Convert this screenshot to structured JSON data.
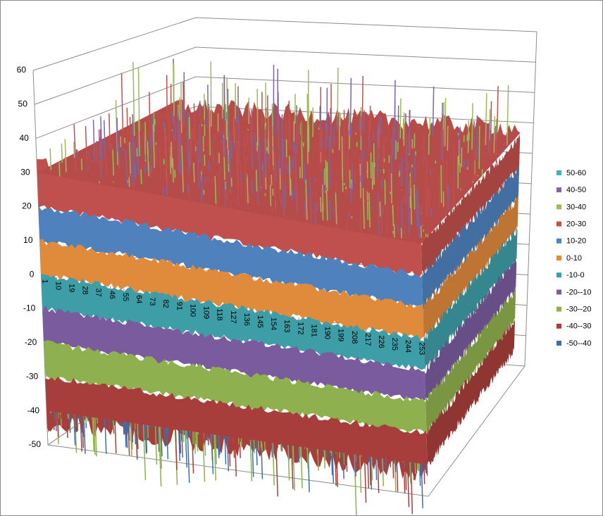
{
  "chart_data": {
    "type": "surface",
    "categories": [
      "1",
      "10",
      "19",
      "28",
      "37",
      "46",
      "55",
      "64",
      "73",
      "82",
      "91",
      "100",
      "109",
      "118",
      "127",
      "136",
      "145",
      "154",
      "163",
      "172",
      "181",
      "190",
      "199",
      "208",
      "217",
      "226",
      "235",
      "244",
      "253"
    ],
    "zlim": [
      -50,
      60
    ],
    "zticks": [
      -50,
      -40,
      -30,
      -20,
      -10,
      0,
      10,
      20,
      30,
      40,
      50,
      60
    ],
    "grid": true,
    "legend": "right",
    "series": [
      {
        "name": "50-60",
        "color": "#4bacc6"
      },
      {
        "name": "40-50",
        "color": "#8064a2"
      },
      {
        "name": "30-40",
        "color": "#9bbb59"
      },
      {
        "name": "20-30",
        "color": "#c0504d"
      },
      {
        "name": "10-20",
        "color": "#4f81bd"
      },
      {
        "name": "0-10",
        "color": "#e08a3c"
      },
      {
        "name": "-10-0",
        "color": "#3e9ea8"
      },
      {
        "name": "-20--10",
        "color": "#7a5c9e"
      },
      {
        "name": "-30--20",
        "color": "#8fb04e"
      },
      {
        "name": "-40--30",
        "color": "#a83e3b"
      },
      {
        "name": "-50--40",
        "color": "#3f6fa8"
      }
    ]
  }
}
